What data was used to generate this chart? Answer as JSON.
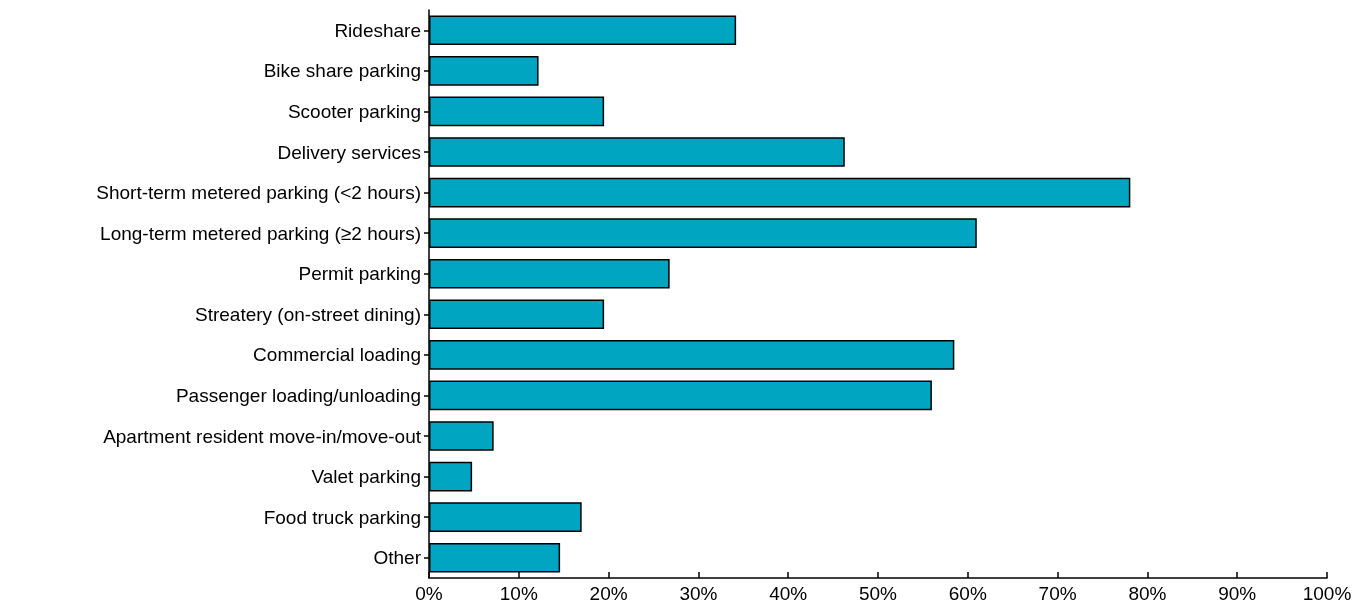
{
  "chart_data": {
    "type": "bar",
    "orientation": "horizontal",
    "categories": [
      "Rideshare",
      "Bike share parking",
      "Scooter parking",
      "Delivery services",
      "Short-term metered parking (<2 hours)",
      "Long-term metered parking (≥2 hours)",
      "Permit parking",
      "Streatery (on-street dining)",
      "Commercial loading",
      "Passenger loading/unloading",
      "Apartment resident move-in/move-out",
      "Valet parking",
      "Food truck parking",
      "Other"
    ],
    "values": [
      34.2,
      12.2,
      19.5,
      46.3,
      78.1,
      61.0,
      26.8,
      19.5,
      58.5,
      56.0,
      7.2,
      4.8,
      17.0,
      14.6
    ],
    "color": "#00a6c1",
    "xlim": [
      0,
      100
    ],
    "xticks": [
      {
        "value": 0,
        "label": "0%"
      },
      {
        "value": 10,
        "label": "10%"
      },
      {
        "value": 20,
        "label": "20%"
      },
      {
        "value": 30,
        "label": "30%"
      },
      {
        "value": 40,
        "label": "40%"
      },
      {
        "value": 50,
        "label": "50%"
      },
      {
        "value": 60,
        "label": "60%"
      },
      {
        "value": 70,
        "label": "70%"
      },
      {
        "value": 80,
        "label": "80%"
      },
      {
        "value": 90,
        "label": "90%"
      },
      {
        "value": 100,
        "label": "100%"
      }
    ],
    "grid": false
  }
}
